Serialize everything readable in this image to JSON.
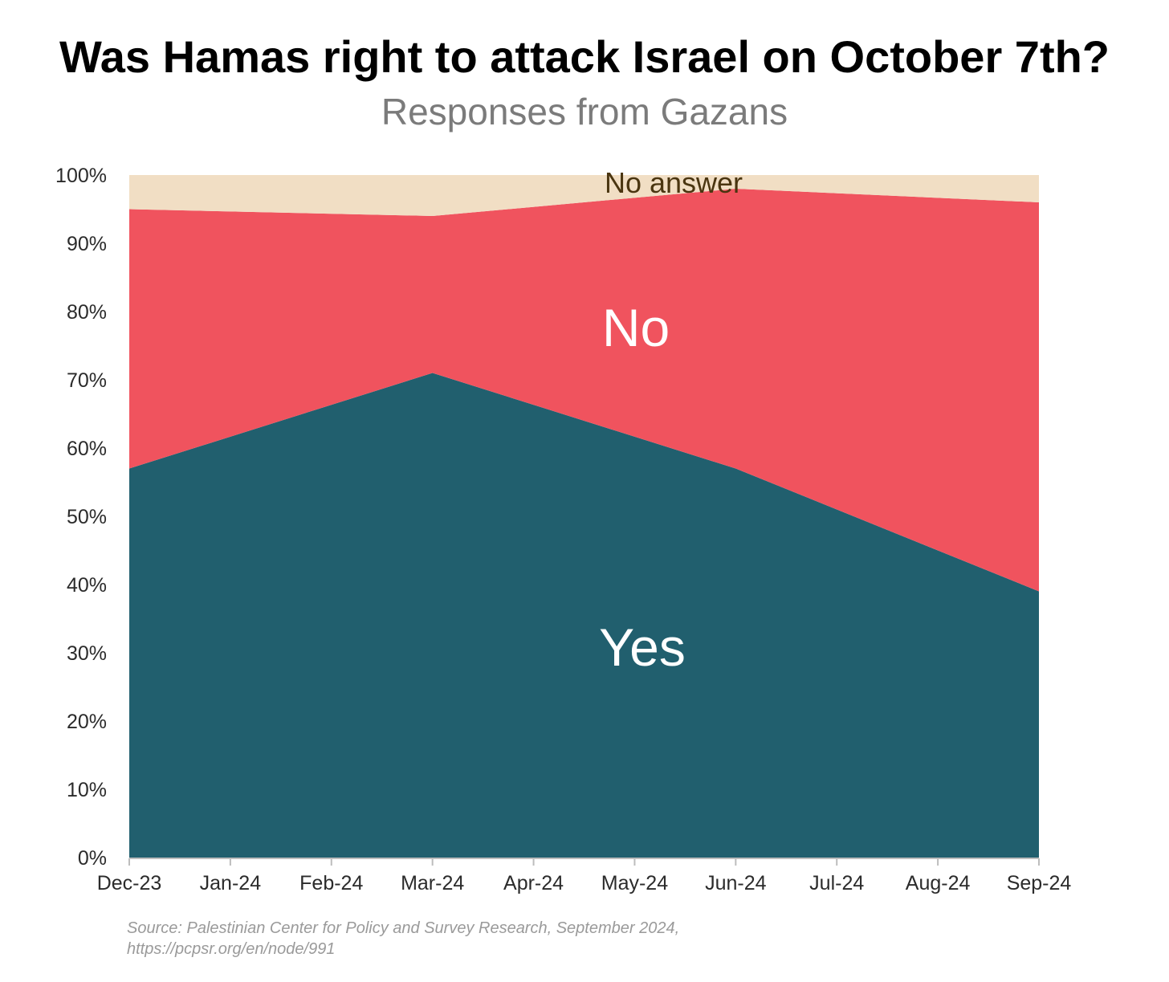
{
  "title": "Was Hamas right to attack Israel on October 7th?",
  "subtitle": "Responses from Gazans",
  "source": {
    "line1": "Source: Palestinian Center for Policy and Survey Research, September 2024,",
    "line2": "https://pcpsr.org/en/node/991"
  },
  "chart_data": {
    "type": "area",
    "stacked": true,
    "title": "Was Hamas right to attack Israel on October 7th?",
    "subtitle": "Responses from Gazans",
    "x_ticks": [
      "Dec-23",
      "Jan-24",
      "Feb-24",
      "Mar-24",
      "Apr-24",
      "May-24",
      "Jun-24",
      "Jul-24",
      "Aug-24",
      "Sep-24"
    ],
    "x": [
      "Dec-23",
      "Mar-24",
      "Jun-24",
      "Sep-24"
    ],
    "series": [
      {
        "name": "Yes",
        "values": [
          57,
          71,
          57,
          39
        ],
        "color": "#215f6e"
      },
      {
        "name": "No",
        "values": [
          38,
          23,
          41,
          57
        ],
        "color": "#f0535e"
      },
      {
        "name": "No answer",
        "values": [
          5,
          6,
          2,
          4
        ],
        "color": "#f1dec4"
      }
    ],
    "y_ticks": [
      "0%",
      "10%",
      "20%",
      "30%",
      "40%",
      "50%",
      "60%",
      "70%",
      "80%",
      "90%",
      "100%"
    ],
    "ylim": [
      0,
      100
    ],
    "grid": false,
    "legend": "inline labels"
  }
}
